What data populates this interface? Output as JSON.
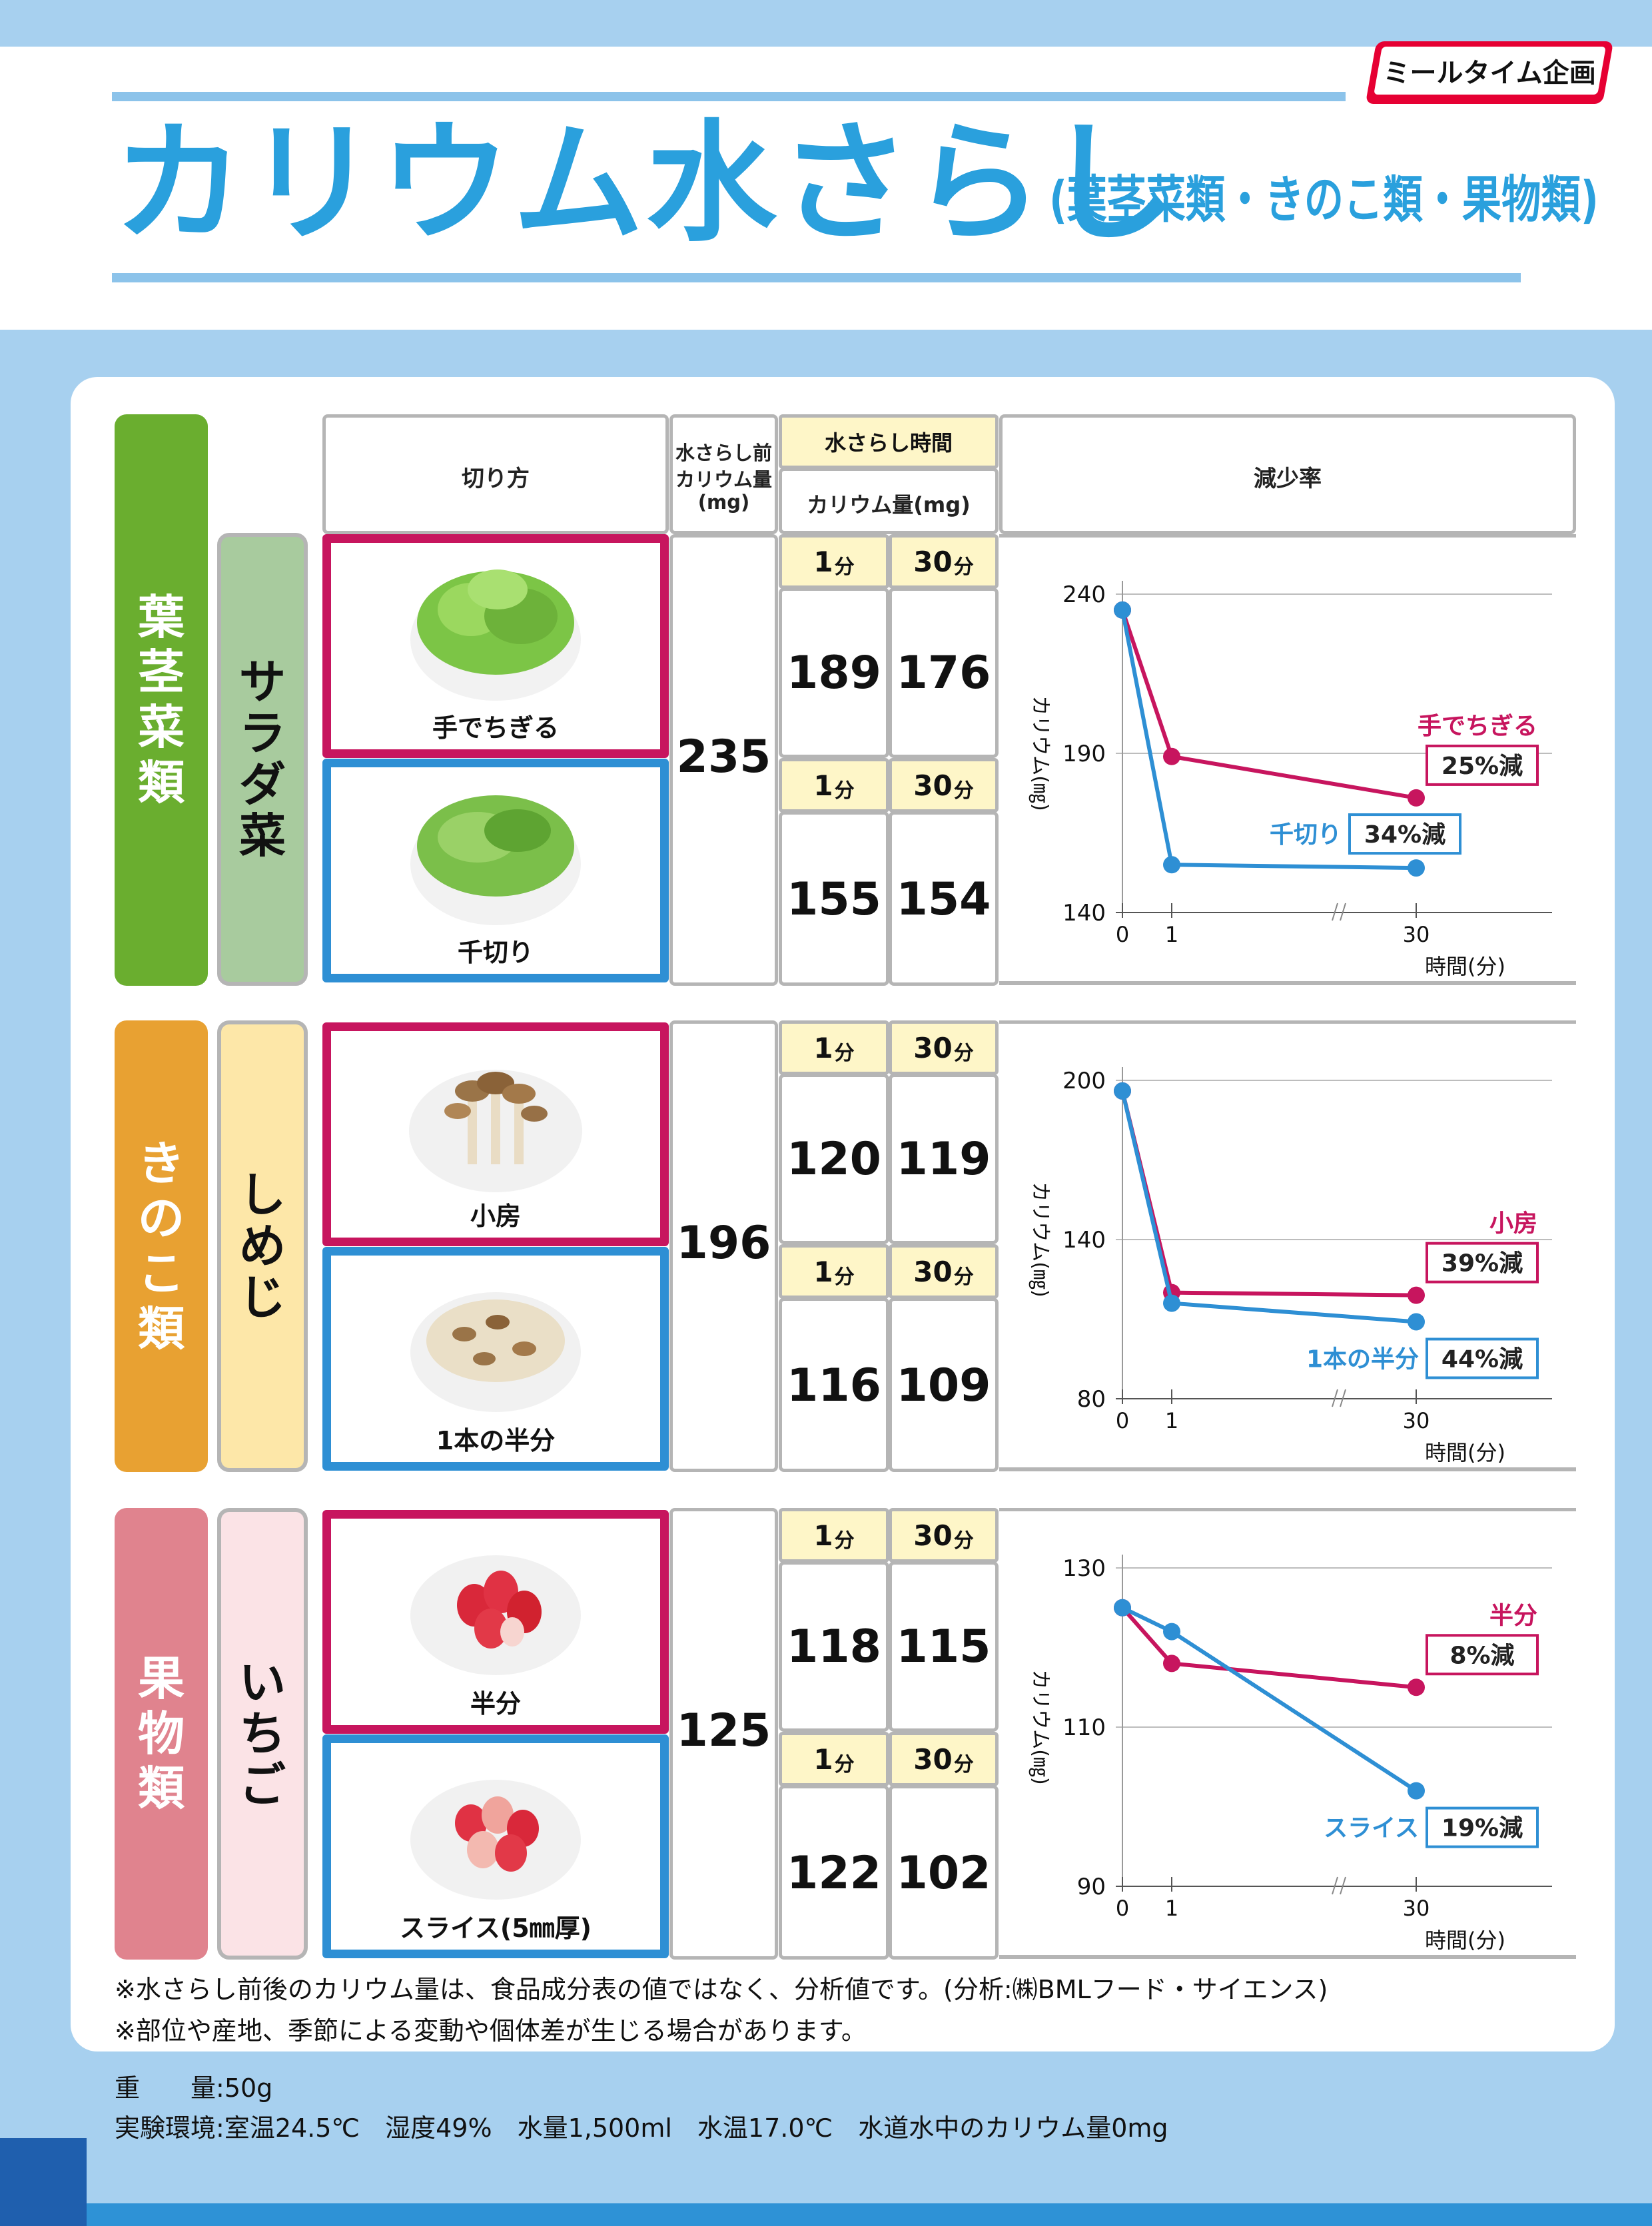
{
  "brand": "ミールタイム企画",
  "title": "カリウム水さらし",
  "subtitle": "(葉茎菜類・きのこ類・果物類)",
  "header": {
    "cut": "切り方",
    "before1": "水さらし前",
    "before2": "カリウム量",
    "before3": "(mg)",
    "time": "水さらし時間",
    "potassium": "カリウム量(mg)",
    "rate": "減少率"
  },
  "sections": [
    {
      "category": [
        "葉",
        "茎",
        "菜",
        "類"
      ],
      "item": [
        "サ",
        "ラ",
        "ダ",
        "菜"
      ],
      "before": "235",
      "rows": [
        {
          "label": "手でちぎる",
          "t1": "1",
          "t30": "30",
          "v1": "189",
          "v30": "176"
        },
        {
          "label": "千切り",
          "t1": "1",
          "t30": "30",
          "v1": "155",
          "v30": "154"
        }
      ]
    },
    {
      "category": [
        "き",
        "の",
        "こ",
        "類"
      ],
      "item": [
        "し",
        "め",
        "じ"
      ],
      "before": "196",
      "rows": [
        {
          "label": "小房",
          "t1": "1",
          "t30": "30",
          "v1": "120",
          "v30": "119"
        },
        {
          "label": "1本の半分",
          "t1": "1",
          "t30": "30",
          "v1": "116",
          "v30": "109"
        }
      ]
    },
    {
      "category": [
        "果",
        "物",
        "類"
      ],
      "item": [
        "い",
        "ち",
        "ご"
      ],
      "before": "125",
      "rows": [
        {
          "label": "半分",
          "t1": "1",
          "t30": "30",
          "v1": "118",
          "v30": "115"
        },
        {
          "label": "スライス(5㎜厚)",
          "t1": "1",
          "t30": "30",
          "v1": "122",
          "v30": "102"
        }
      ]
    }
  ],
  "minute_unit": "分",
  "chart_data": [
    {
      "type": "line",
      "x": [
        0,
        1,
        30
      ],
      "ylim": [
        140,
        240
      ],
      "yticks": [
        "240",
        "190",
        "140"
      ],
      "xticks": [
        "0",
        "1",
        "30"
      ],
      "ylabel": "カリウム(㎎)",
      "xlabel": "時間(分)",
      "series": [
        {
          "name": "手でちぎる",
          "values": [
            235,
            189,
            176
          ],
          "color": "#c7155e",
          "reduction": "25%減"
        },
        {
          "name": "千切り",
          "values": [
            235,
            155,
            154
          ],
          "color": "#2e8fd4",
          "reduction": "34%減"
        }
      ]
    },
    {
      "type": "line",
      "x": [
        0,
        1,
        30
      ],
      "ylim": [
        80,
        200
      ],
      "yticks": [
        "200",
        "140",
        "80"
      ],
      "xticks": [
        "0",
        "1",
        "30"
      ],
      "ylabel": "カリウム(㎎)",
      "xlabel": "時間(分)",
      "series": [
        {
          "name": "小房",
          "values": [
            196,
            120,
            119
          ],
          "color": "#c7155e",
          "reduction": "39%減"
        },
        {
          "name": "1本の半分",
          "values": [
            196,
            116,
            109
          ],
          "color": "#2e8fd4",
          "reduction": "44%減"
        }
      ]
    },
    {
      "type": "line",
      "x": [
        0,
        1,
        30
      ],
      "ylim": [
        90,
        130
      ],
      "yticks": [
        "130",
        "110",
        "90"
      ],
      "xticks": [
        "0",
        "1",
        "30"
      ],
      "ylabel": "カリウム(㎎)",
      "xlabel": "時間(分)",
      "series": [
        {
          "name": "半分",
          "values": [
            125,
            118,
            115
          ],
          "color": "#c7155e",
          "reduction": "8%減"
        },
        {
          "name": "スライス",
          "values": [
            125,
            122,
            102
          ],
          "color": "#2e8fd4",
          "reduction": "19%減"
        }
      ]
    }
  ],
  "colors": {
    "category1": "#6aae2f",
    "category2": "#e8a132",
    "category3": "#e0838e",
    "item1": "#a8cb9e",
    "item2": "#fde7a8",
    "item3": "#fbe3e6"
  },
  "notes": [
    "※水さらし前後のカリウム量は、食品成分表の値ではなく、分析値です。(分析:㈱BMLフード・サイエンス)",
    "※部位や産地、季節による変動や個体差が生じる場合があります。"
  ],
  "footer": {
    "weight_label": "重　　量",
    "weight_value": ":50g",
    "env_label": "実験環境",
    "env_value": ":室温24.5℃　湿度49%　水量1,500ml　水温17.0℃　水道水中のカリウム量0mg"
  }
}
